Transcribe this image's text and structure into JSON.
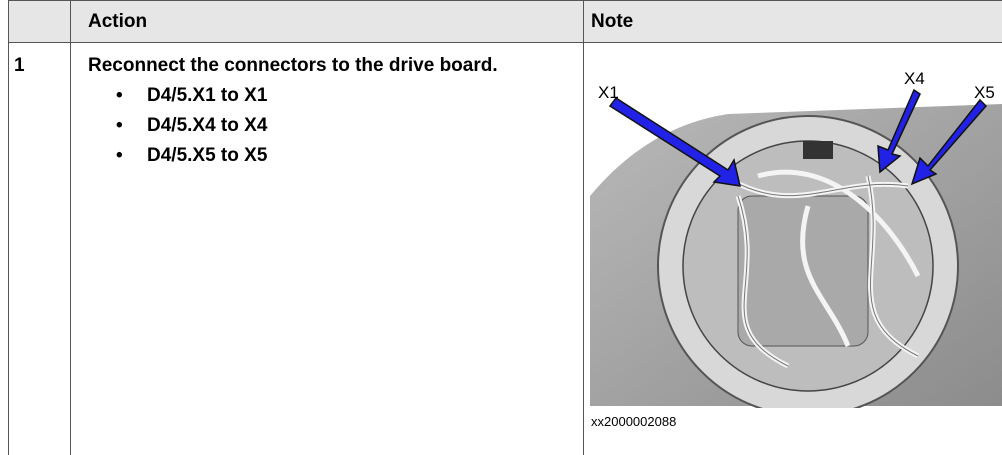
{
  "table": {
    "header": [
      "Action",
      "Note"
    ],
    "rows": [
      {
        "step": "1",
        "action": "Reconnect the connectors to the drive board.",
        "bullets": [
          "D4/5.X1 to X1",
          "D4/5.X4 to X4",
          "D4/5.X5 to X5"
        ],
        "figure": {
          "labels": [
            "X1",
            "X4",
            "X5"
          ],
          "caption": "xx2000002088"
        }
      }
    ]
  }
}
